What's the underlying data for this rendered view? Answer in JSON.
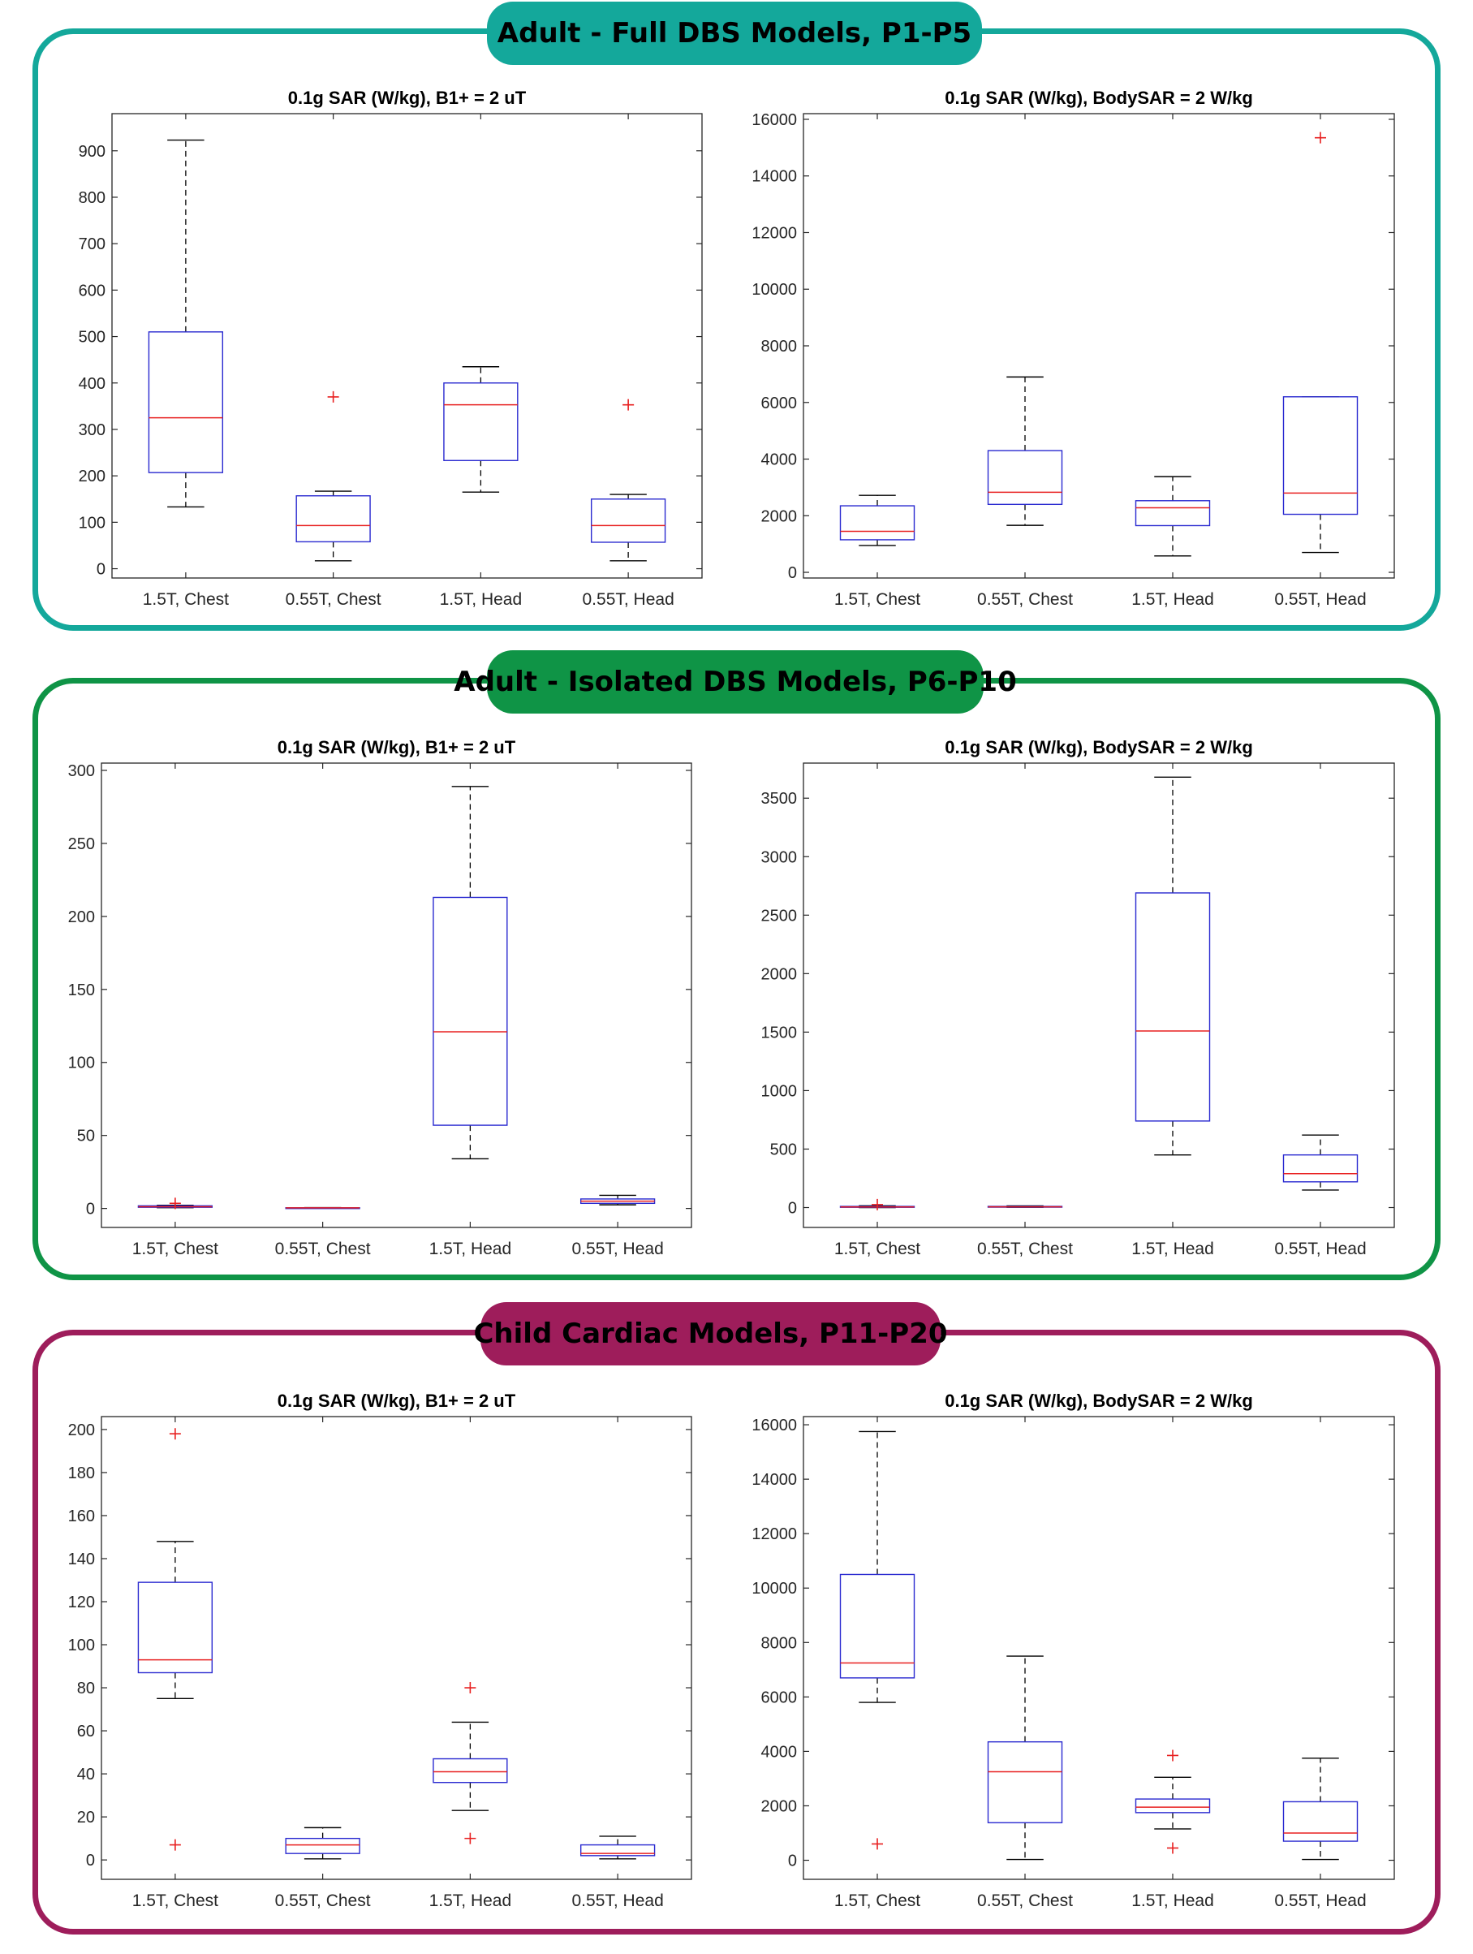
{
  "sections": [
    {
      "title": "Adult - Full DBS Models, P1-P5",
      "color": "#14a89b",
      "charts": [
        {
          "type": "boxplot",
          "title": "0.1g SAR (W/kg), B1+ = 2 uT",
          "categories": [
            "1.5T, Chest",
            "0.55T, Chest",
            "1.5T, Head",
            "0.55T, Head"
          ],
          "ylim": [
            -20,
            980
          ],
          "yticks": [
            0,
            100,
            200,
            300,
            400,
            500,
            600,
            700,
            800,
            900
          ],
          "boxes": [
            {
              "whisker_low": 133,
              "q1": 207,
              "median": 325,
              "q3": 510,
              "whisker_high": 923,
              "outliers": []
            },
            {
              "whisker_low": 17,
              "q1": 58,
              "median": 93,
              "q3": 157,
              "whisker_high": 167,
              "outliers": [
                370
              ]
            },
            {
              "whisker_low": 165,
              "q1": 233,
              "median": 353,
              "q3": 400,
              "whisker_high": 435,
              "outliers": []
            },
            {
              "whisker_low": 17,
              "q1": 57,
              "median": 93,
              "q3": 150,
              "whisker_high": 160,
              "outliers": [
                353
              ]
            }
          ]
        },
        {
          "type": "boxplot",
          "title": "0.1g SAR (W/kg), BodySAR = 2 W/kg",
          "categories": [
            "1.5T, Chest",
            "0.55T, Chest",
            "1.5T, Head",
            "0.55T, Head"
          ],
          "ylim": [
            -200,
            16200
          ],
          "yticks": [
            0,
            2000,
            4000,
            6000,
            8000,
            10000,
            12000,
            14000,
            16000
          ],
          "boxes": [
            {
              "whisker_low": 950,
              "q1": 1150,
              "median": 1450,
              "q3": 2350,
              "whisker_high": 2720,
              "outliers": []
            },
            {
              "whisker_low": 1660,
              "q1": 2400,
              "median": 2830,
              "q3": 4300,
              "whisker_high": 6900,
              "outliers": []
            },
            {
              "whisker_low": 580,
              "q1": 1650,
              "median": 2280,
              "q3": 2530,
              "whisker_high": 3380,
              "outliers": []
            },
            {
              "whisker_low": 700,
              "q1": 2050,
              "median": 2800,
              "q3": 6200,
              "whisker_high": 6200,
              "outliers": [
                15350
              ]
            }
          ]
        }
      ]
    },
    {
      "title": "Adult - Isolated DBS Models, P6-P10",
      "color": "#0f9446",
      "charts": [
        {
          "type": "boxplot",
          "title": "0.1g SAR (W/kg), B1+ = 2 uT",
          "categories": [
            "1.5T, Chest",
            "0.55T, Chest",
            "1.5T, Head",
            "0.55T, Head"
          ],
          "ylim": [
            -13,
            305
          ],
          "yticks": [
            0,
            50,
            100,
            150,
            200,
            250,
            300
          ],
          "boxes": [
            {
              "whisker_low": 0.5,
              "q1": 0.8,
              "median": 1.2,
              "q3": 1.8,
              "whisker_high": 2.2,
              "outliers": [
                3.5
              ]
            },
            {
              "whisker_low": 0.2,
              "q1": 0.3,
              "median": 0.4,
              "q3": 0.5,
              "whisker_high": 0.6,
              "outliers": []
            },
            {
              "whisker_low": 34,
              "q1": 57,
              "median": 121,
              "q3": 213,
              "whisker_high": 289,
              "outliers": []
            },
            {
              "whisker_low": 2.5,
              "q1": 3.5,
              "median": 5,
              "q3": 6.5,
              "whisker_high": 9,
              "outliers": []
            }
          ]
        },
        {
          "type": "boxplot",
          "title": "0.1g SAR (W/kg), BodySAR = 2 W/kg",
          "categories": [
            "1.5T, Chest",
            "0.55T, Chest",
            "1.5T, Head",
            "0.55T, Head"
          ],
          "ylim": [
            -170,
            3800
          ],
          "yticks": [
            0,
            500,
            1000,
            1500,
            2000,
            2500,
            3000,
            3500
          ],
          "boxes": [
            {
              "whisker_low": 0,
              "q1": 2,
              "median": 5,
              "q3": 10,
              "whisker_high": 15,
              "outliers": [
                25
              ]
            },
            {
              "whisker_low": 2,
              "q1": 4,
              "median": 6,
              "q3": 10,
              "whisker_high": 14,
              "outliers": []
            },
            {
              "whisker_low": 450,
              "q1": 740,
              "median": 1510,
              "q3": 2690,
              "whisker_high": 3680,
              "outliers": []
            },
            {
              "whisker_low": 150,
              "q1": 220,
              "median": 290,
              "q3": 450,
              "whisker_high": 620,
              "outliers": []
            }
          ]
        }
      ]
    },
    {
      "title": "Child Cardiac Models, P11-P20",
      "color": "#9e1d5b",
      "charts": [
        {
          "type": "boxplot",
          "title": "0.1g SAR (W/kg), B1+ = 2 uT",
          "categories": [
            "1.5T, Chest",
            "0.55T, Chest",
            "1.5T, Head",
            "0.55T, Head"
          ],
          "ylim": [
            -9,
            206
          ],
          "yticks": [
            0,
            20,
            40,
            60,
            80,
            100,
            120,
            140,
            160,
            180,
            200
          ],
          "boxes": [
            {
              "whisker_low": 75,
              "q1": 87,
              "median": 93,
              "q3": 129,
              "whisker_high": 148,
              "outliers": [
                198,
                7
              ]
            },
            {
              "whisker_low": 0.5,
              "q1": 3,
              "median": 7,
              "q3": 10,
              "whisker_high": 15,
              "outliers": []
            },
            {
              "whisker_low": 23,
              "q1": 36,
              "median": 41,
              "q3": 47,
              "whisker_high": 64,
              "outliers": [
                80,
                10
              ]
            },
            {
              "whisker_low": 0.5,
              "q1": 2,
              "median": 3,
              "q3": 7,
              "whisker_high": 11,
              "outliers": []
            }
          ]
        },
        {
          "type": "boxplot",
          "title": "0.1g SAR (W/kg), BodySAR = 2 W/kg",
          "categories": [
            "1.5T, Chest",
            "0.55T, Chest",
            "1.5T, Head",
            "0.55T, Head"
          ],
          "ylim": [
            -700,
            16300
          ],
          "yticks": [
            0,
            2000,
            4000,
            6000,
            8000,
            10000,
            12000,
            14000,
            16000
          ],
          "boxes": [
            {
              "whisker_low": 5800,
              "q1": 6700,
              "median": 7250,
              "q3": 10500,
              "whisker_high": 15750,
              "outliers": [
                600
              ]
            },
            {
              "whisker_low": 30,
              "q1": 1380,
              "median": 3250,
              "q3": 4350,
              "whisker_high": 7500,
              "outliers": []
            },
            {
              "whisker_low": 1150,
              "q1": 1750,
              "median": 1950,
              "q3": 2250,
              "whisker_high": 3050,
              "outliers": [
                3850,
                450
              ]
            },
            {
              "whisker_low": 30,
              "q1": 700,
              "median": 1000,
              "q3": 2150,
              "whisker_high": 3750,
              "outliers": []
            }
          ]
        }
      ]
    }
  ]
}
